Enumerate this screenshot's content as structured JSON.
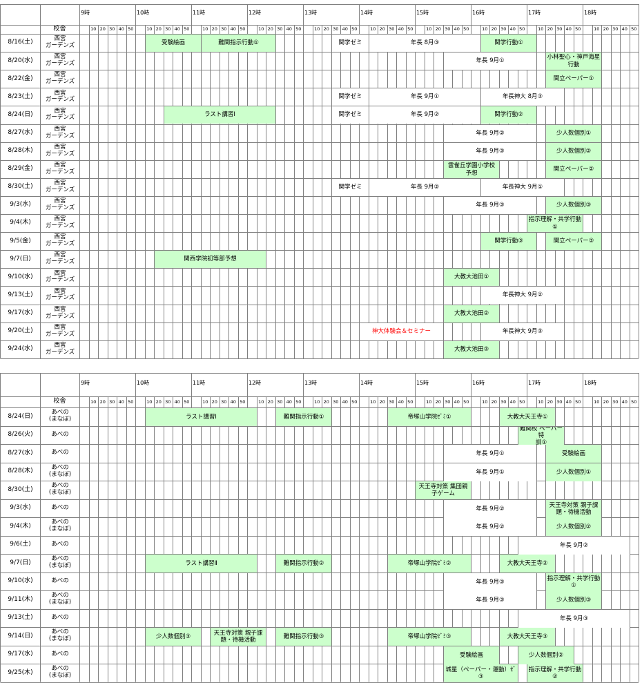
{
  "header": {
    "campus_label": "校舎",
    "hours": [
      "9時",
      "10時",
      "11時",
      "12時",
      "13時",
      "14時",
      "15時",
      "16時",
      "17時",
      "18時"
    ],
    "minutes": [
      "10",
      "20",
      "30",
      "40",
      "50"
    ]
  },
  "colors": {
    "event_fill": "#ccffcc",
    "grid": "#808080",
    "red_text": "#ff0000"
  },
  "tables": [
    {
      "rows": [
        {
          "date": "8/16(土)",
          "campus": "西宮\nガーデンズ",
          "events": [
            {
              "label": "受験絵画",
              "start": "10:10",
              "end": "11:10",
              "style": "green"
            },
            {
              "label": "難関指示行動①",
              "start": "11:10",
              "end": "12:30",
              "style": "green"
            },
            {
              "label": "関学ゼミ",
              "start": "13:30",
              "end": "14:10",
              "style": "plain"
            },
            {
              "label": "年長 8月③",
              "start": "14:10",
              "end": "16:10",
              "style": "plain"
            },
            {
              "label": "関学行動①",
              "start": "16:10",
              "end": "17:10",
              "style": "green"
            }
          ]
        },
        {
          "date": "8/20(水)",
          "campus": "西宮\nガーデンズ",
          "events": [
            {
              "label": "年長 9月①",
              "start": "15:30",
              "end": "17:10",
              "style": "plain"
            },
            {
              "label": "小林聖心・神戸海星\n行動",
              "start": "17:20",
              "end": "18:20",
              "style": "green"
            }
          ]
        },
        {
          "date": "8/22(金)",
          "campus": "西宮\nガーデンズ",
          "events": [
            {
              "label": "関立ペーパー①",
              "start": "17:20",
              "end": "18:20",
              "style": "green"
            }
          ]
        },
        {
          "date": "8/23(土)",
          "campus": "西宮\nガーデンズ",
          "events": [
            {
              "label": "関学ゼミ",
              "start": "13:30",
              "end": "14:10",
              "style": "plain"
            },
            {
              "label": "年長 9月①",
              "start": "14:10",
              "end": "16:10",
              "style": "plain"
            },
            {
              "label": "年長神大 8月③",
              "start": "16:10",
              "end": "17:40",
              "style": "plain"
            }
          ]
        },
        {
          "date": "8/24(日)",
          "campus": "西宮\nガーデンズ",
          "events": [
            {
              "label": "ラスト講習Ⅰ",
              "start": "10:30",
              "end": "12:30",
              "style": "green"
            },
            {
              "label": "関学ゼミ",
              "start": "13:30",
              "end": "14:10",
              "style": "plain"
            },
            {
              "label": "年長 9月②",
              "start": "14:10",
              "end": "16:10",
              "style": "plain"
            },
            {
              "label": "関学行動②",
              "start": "16:10",
              "end": "17:10",
              "style": "green"
            }
          ]
        },
        {
          "date": "8/27(水)",
          "campus": "西宮\nガーデンズ",
          "events": [
            {
              "label": "年長 9月②",
              "start": "15:30",
              "end": "17:10",
              "style": "plain"
            },
            {
              "label": "少人数個別①",
              "start": "17:20",
              "end": "18:20",
              "style": "green"
            }
          ]
        },
        {
          "date": "8/28(木)",
          "campus": "西宮\nガーデンズ",
          "events": [
            {
              "label": "年長 9月③",
              "start": "15:30",
              "end": "17:10",
              "style": "plain"
            },
            {
              "label": "少人数個別②",
              "start": "17:20",
              "end": "18:20",
              "style": "green"
            }
          ]
        },
        {
          "date": "8/29(金)",
          "campus": "西宮\nガーデンズ",
          "events": [
            {
              "label": "雲雀丘学園小学校\n予想",
              "start": "15:30",
              "end": "16:30",
              "style": "green"
            },
            {
              "label": "関立ペーパー②",
              "start": "17:20",
              "end": "18:20",
              "style": "green"
            }
          ]
        },
        {
          "date": "8/30(土)",
          "campus": "西宮\nガーデンズ",
          "events": [
            {
              "label": "関学ゼミ",
              "start": "13:30",
              "end": "14:10",
              "style": "plain"
            },
            {
              "label": "年長 9月②",
              "start": "14:10",
              "end": "16:10",
              "style": "plain"
            },
            {
              "label": "年長神大 9月①",
              "start": "16:10",
              "end": "17:40",
              "style": "plain"
            }
          ]
        },
        {
          "date": "9/3(水)",
          "campus": "西宮\nガーデンズ",
          "events": [
            {
              "label": "年長 9月③",
              "start": "15:30",
              "end": "17:10",
              "style": "plain"
            },
            {
              "label": "少人数個別③",
              "start": "17:20",
              "end": "18:20",
              "style": "green"
            }
          ]
        },
        {
          "date": "9/4(木)",
          "campus": "西宮\nガーデンズ",
          "events": [
            {
              "label": "指示理解・共学行動\n①",
              "start": "17:00",
              "end": "18:00",
              "style": "green"
            }
          ]
        },
        {
          "date": "9/5(金)",
          "campus": "西宮\nガーデンズ",
          "events": [
            {
              "label": "関学行動③",
              "start": "16:10",
              "end": "17:10",
              "style": "green"
            },
            {
              "label": "関立ペーパー③",
              "start": "17:20",
              "end": "18:20",
              "style": "green"
            }
          ]
        },
        {
          "date": "9/7(日)",
          "campus": "西宮\nガーデンズ",
          "events": [
            {
              "label": "関西学院初等部予想",
              "start": "10:20",
              "end": "12:20",
              "style": "green"
            }
          ]
        },
        {
          "date": "9/10(水)",
          "campus": "西宮\nガーデンズ",
          "events": [
            {
              "label": "大教大池田①",
              "start": "15:30",
              "end": "16:30",
              "style": "green"
            }
          ]
        },
        {
          "date": "9/13(土)",
          "campus": "西宮\nガーデンズ",
          "events": [
            {
              "label": "年長神大 9月②",
              "start": "16:10",
              "end": "17:40",
              "style": "plain"
            }
          ]
        },
        {
          "date": "9/17(水)",
          "campus": "西宮\nガーデンズ",
          "events": [
            {
              "label": "大教大池田②",
              "start": "15:30",
              "end": "16:30",
              "style": "green"
            }
          ]
        },
        {
          "date": "9/20(土)",
          "campus": "西宮\nガーデンズ",
          "events": [
            {
              "label": "神大体験会＆セミナー",
              "start": "14:00",
              "end": "15:30",
              "style": "red"
            },
            {
              "label": "年長神大 9月③",
              "start": "16:10",
              "end": "17:40",
              "style": "plain"
            }
          ]
        },
        {
          "date": "9/24(水)",
          "campus": "西宮\nガーデンズ",
          "events": [
            {
              "label": "大教大池田③",
              "start": "15:30",
              "end": "16:30",
              "style": "green"
            }
          ]
        }
      ]
    },
    {
      "rows": [
        {
          "date": "8/24(日)",
          "campus": "あべの\n(まなぼ)",
          "events": [
            {
              "label": "ラスト講習Ⅰ",
              "start": "10:10",
              "end": "12:10",
              "style": "green"
            },
            {
              "label": "難関指示行動①",
              "start": "12:30",
              "end": "13:30",
              "style": "green"
            },
            {
              "label": "帝塚山学院ｾﾞﾐ①",
              "start": "14:30",
              "end": "16:00",
              "style": "green"
            },
            {
              "label": "大教大天王寺①",
              "start": "16:30",
              "end": "17:30",
              "style": "green"
            }
          ]
        },
        {
          "date": "8/26(火)",
          "campus": "あべの",
          "events": [
            {
              "label": "難関校 ペーパー特\n訓①",
              "start": "16:50",
              "end": "17:40",
              "style": "green"
            }
          ]
        },
        {
          "date": "8/27(水)",
          "campus": "あべの",
          "events": [
            {
              "label": "年長 9月①",
              "start": "15:30",
              "end": "17:10",
              "style": "plain"
            },
            {
              "label": "受験絵画",
              "start": "17:20",
              "end": "18:20",
              "style": "green"
            }
          ]
        },
        {
          "date": "8/28(木)",
          "campus": "あべの\n(まなぼ)",
          "events": [
            {
              "label": "年長 9月①",
              "start": "15:30",
              "end": "17:10",
              "style": "plain"
            },
            {
              "label": "少人数個別①",
              "start": "17:20",
              "end": "18:20",
              "style": "green"
            }
          ]
        },
        {
          "date": "8/30(土)",
          "campus": "あべの\n(まなぼ)",
          "events": [
            {
              "label": "天王寺対策 集団親\n子ゲーム",
              "start": "15:00",
              "end": "16:00",
              "style": "green"
            }
          ]
        },
        {
          "date": "9/3(水)",
          "campus": "あべの",
          "events": [
            {
              "label": "年長 9月②",
              "start": "15:30",
              "end": "17:10",
              "style": "plain"
            },
            {
              "label": "天王寺対策 親子課\n題・待機活動",
              "start": "17:20",
              "end": "18:20",
              "style": "green"
            }
          ]
        },
        {
          "date": "9/4(木)",
          "campus": "あべの\n(まなぼ)",
          "events": [
            {
              "label": "年長 9月②",
              "start": "15:30",
              "end": "17:10",
              "style": "plain"
            },
            {
              "label": "少人数個別②",
              "start": "17:20",
              "end": "18:20",
              "style": "green"
            }
          ]
        },
        {
          "date": "9/6(土)",
          "campus": "あべの",
          "events": [
            {
              "label": "年長 9月②",
              "start": "16:50",
              "end": "18:50",
              "style": "plain"
            }
          ]
        },
        {
          "date": "9/7(日)",
          "campus": "あべの\n(まなぼ)",
          "events": [
            {
              "label": "ラスト講習Ⅱ",
              "start": "10:10",
              "end": "12:10",
              "style": "green"
            },
            {
              "label": "難関指示行動②",
              "start": "12:30",
              "end": "13:30",
              "style": "green"
            },
            {
              "label": "帝塚山学院ｾﾞﾐ②",
              "start": "14:30",
              "end": "16:00",
              "style": "green"
            },
            {
              "label": "大教大天王寺②",
              "start": "16:30",
              "end": "17:30",
              "style": "green"
            }
          ]
        },
        {
          "date": "9/10(水)",
          "campus": "あべの",
          "events": [
            {
              "label": "年長 9月③",
              "start": "15:30",
              "end": "17:10",
              "style": "plain"
            },
            {
              "label": "指示理解・共学行動\n①",
              "start": "17:20",
              "end": "18:20",
              "style": "green"
            }
          ]
        },
        {
          "date": "9/11(木)",
          "campus": "あべの\n(まなぼ)",
          "events": [
            {
              "label": "年長 9月③",
              "start": "15:30",
              "end": "17:10",
              "style": "plain"
            },
            {
              "label": "少人数個別③",
              "start": "17:20",
              "end": "18:20",
              "style": "green"
            }
          ]
        },
        {
          "date": "9/13(土)",
          "campus": "あべの",
          "events": [
            {
              "label": "年長 9月③",
              "start": "16:50",
              "end": "18:50",
              "style": "plain"
            }
          ]
        },
        {
          "date": "9/14(日)",
          "campus": "あべの\n(まなぼ)",
          "events": [
            {
              "label": "少人数個別③",
              "start": "10:10",
              "end": "11:10",
              "style": "green"
            },
            {
              "label": "天王寺対策 親子課\n題・待機活動",
              "start": "11:20",
              "end": "12:20",
              "style": "green"
            },
            {
              "label": "難関指示行動③",
              "start": "12:30",
              "end": "13:30",
              "style": "green"
            },
            {
              "label": "帝塚山学院ｾﾞﾐ③",
              "start": "14:30",
              "end": "16:00",
              "style": "green"
            },
            {
              "label": "大教大天王寺③",
              "start": "16:30",
              "end": "17:30",
              "style": "green"
            }
          ]
        },
        {
          "date": "9/17(水)",
          "campus": "あべの",
          "events": [
            {
              "label": "受験絵画",
              "start": "15:30",
              "end": "16:30",
              "style": "green"
            },
            {
              "label": "少人数個別②",
              "start": "16:50",
              "end": "17:50",
              "style": "green"
            }
          ]
        },
        {
          "date": "9/25(木)",
          "campus": "あべの\n(まなぼ)",
          "events": [
            {
              "label": "城星（ペーパー・運動）ｾﾞ③",
              "start": "15:30",
              "end": "16:50",
              "style": "green"
            },
            {
              "label": "指示理解・共学行動\n②",
              "start": "17:00",
              "end": "18:00",
              "style": "green"
            }
          ]
        }
      ]
    }
  ]
}
